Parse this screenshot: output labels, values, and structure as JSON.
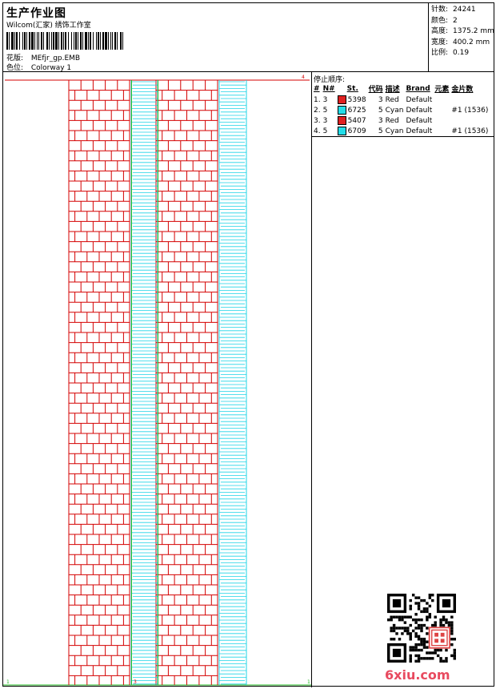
{
  "header": {
    "title": "生产作业图",
    "company": "Wilcom(汇家) 绣饰工作室",
    "design_label": "花版:",
    "design_value": "MEfjr_gp.EMB",
    "colorway_label": "色位:",
    "colorway_value": "Colorway 1"
  },
  "stats": [
    {
      "label": "针数:",
      "value": "24241"
    },
    {
      "label": "颜色:",
      "value": "2"
    },
    {
      "label": "高度:",
      "value": "1375.2 mm"
    },
    {
      "label": "宽度:",
      "value": "400.2 mm"
    },
    {
      "label": "比例:",
      "value": "0.19"
    }
  ],
  "stop_sequence": {
    "title": "停止顺序:",
    "columns": [
      "#",
      "N#",
      "St.",
      "代码",
      "描述",
      "Brand",
      "元素",
      "金片数"
    ],
    "rows": [
      {
        "index": "1.",
        "n": "3",
        "color": "#e02020",
        "code": "5398",
        "st": "3",
        "desc": "Red",
        "brand": "Default",
        "element": "",
        "sequins": ""
      },
      {
        "index": "2.",
        "n": "5",
        "color": "#22dde8",
        "code": "6725",
        "st": "5",
        "desc": "Cyan",
        "brand": "Default",
        "element": "",
        "sequins": "#1 (1536)"
      },
      {
        "index": "3.",
        "n": "3",
        "color": "#e02020",
        "code": "5407",
        "st": "3",
        "desc": "Red",
        "brand": "Default",
        "element": "",
        "sequins": ""
      },
      {
        "index": "4.",
        "n": "5",
        "color": "#22dde8",
        "code": "6709",
        "st": "5",
        "desc": "Cyan",
        "brand": "Default",
        "element": "",
        "sequins": "#1 (1536)"
      }
    ]
  },
  "design": {
    "red": "#d40000",
    "cyan": "#1ed4e6",
    "green": "#22b822",
    "corner_marks": [
      "4",
      "1",
      "3",
      "1"
    ]
  },
  "watermark": {
    "site": "6xiu.com",
    "seal_text": "汇家绣饰"
  }
}
